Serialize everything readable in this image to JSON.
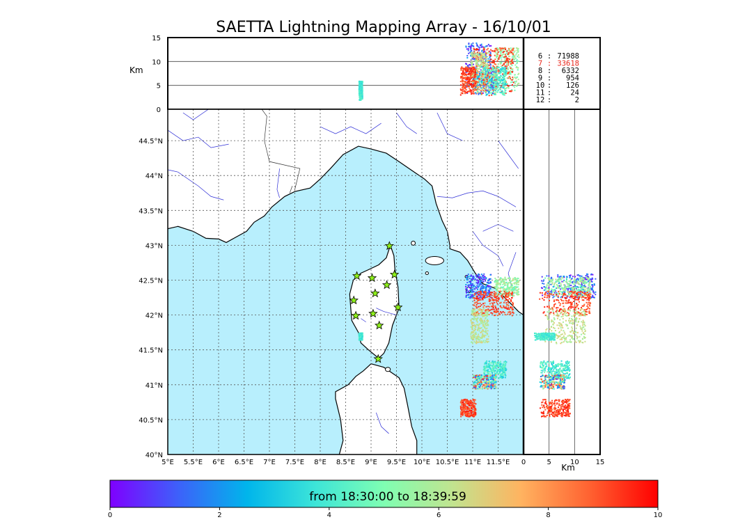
{
  "title": "SAETTA Lightning Mapping Array - 16/10/01",
  "altitude_axis": {
    "label": "Km",
    "ticks": [
      "0",
      "5",
      "10",
      "15"
    ],
    "range": [
      0,
      15
    ],
    "gridlines": [
      5,
      10
    ]
  },
  "map": {
    "lon_range": [
      5.0,
      12.0
    ],
    "lat_range": [
      40.0,
      44.95
    ],
    "lon_ticks": [
      "5°E",
      "5.5°E",
      "6°E",
      "6.5°E",
      "7°E",
      "7.5°E",
      "8°E",
      "8.5°E",
      "9°E",
      "9.5°E",
      "10°E",
      "10.5°E",
      "11°E",
      "11.5°E"
    ],
    "lat_ticks": [
      "40°N",
      "40.5°N",
      "41°N",
      "41.5°N",
      "42°N",
      "42.5°N",
      "43°N",
      "43.5°N",
      "44°N",
      "44.5°N"
    ],
    "sea_color": "#b8effd",
    "land_color": "#ffffff",
    "river_color": "#2d2dd6",
    "sensor_stations": [
      [
        9.36,
        42.99
      ],
      [
        8.72,
        42.56
      ],
      [
        9.02,
        42.53
      ],
      [
        9.46,
        42.58
      ],
      [
        9.31,
        42.43
      ],
      [
        9.08,
        42.31
      ],
      [
        8.66,
        42.21
      ],
      [
        9.53,
        42.11
      ],
      [
        8.7,
        41.99
      ],
      [
        9.04,
        42.02
      ],
      [
        9.16,
        41.85
      ],
      [
        9.14,
        41.37
      ]
    ],
    "sensor_icon": "star-icon"
  },
  "side_panel": {
    "xlabel": "Km",
    "ticks": [
      "0",
      "5",
      "10",
      "15"
    ],
    "range": [
      0,
      15
    ],
    "gridlines": [
      5,
      10
    ]
  },
  "station_counts": [
    {
      "stations": "6",
      "sep": ":",
      "count": "71988",
      "color": "#000000"
    },
    {
      "stations": "7",
      "sep": ":",
      "count": "33618",
      "color": "#e8261a"
    },
    {
      "stations": "8",
      "sep": ":",
      "count": "6332",
      "color": "#000000"
    },
    {
      "stations": "9",
      "sep": ":",
      "count": "954",
      "color": "#000000"
    },
    {
      "stations": "10",
      "sep": ":",
      "count": "126",
      "color": "#000000"
    },
    {
      "stations": "11",
      "sep": ":",
      "count": "24",
      "color": "#000000"
    },
    {
      "stations": "12",
      "sep": ":",
      "count": "2",
      "color": "#000000"
    }
  ],
  "colorbar": {
    "label": "from 18:30:00 to 18:39:59",
    "ticks": [
      "0",
      "2",
      "4",
      "6",
      "8",
      "10"
    ],
    "range": [
      0,
      10
    ],
    "colormap": [
      "#7f00ff",
      "#3d61fa",
      "#00b5eb",
      "#3de5d8",
      "#7ffeb2",
      "#c1e48f",
      "#ffb360",
      "#ff6231",
      "#ff0000"
    ]
  },
  "chart_data": {
    "type": "scatter",
    "clusters": [
      {
        "lon": [
          10.85,
          11.35
        ],
        "lat": [
          42.25,
          42.6
        ],
        "alt": [
          3,
          14
        ],
        "time": [
          0.0,
          2.5
        ]
      },
      {
        "lon": [
          11.4,
          11.9
        ],
        "lat": [
          42.28,
          42.55
        ],
        "alt": [
          4,
          13
        ],
        "time": [
          4.5,
          6.5
        ]
      },
      {
        "lon": [
          11.0,
          11.8
        ],
        "lat": [
          42.0,
          42.35
        ],
        "alt": [
          3,
          13
        ],
        "time": [
          8.5,
          9.8
        ]
      },
      {
        "lon": [
          10.95,
          11.3
        ],
        "lat": [
          41.6,
          42.1
        ],
        "alt": [
          4,
          12
        ],
        "time": [
          5.5,
          7.0
        ]
      },
      {
        "lon": [
          11.2,
          11.65
        ],
        "lat": [
          41.1,
          41.35
        ],
        "alt": [
          3,
          9
        ],
        "time": [
          3.0,
          5.0
        ]
      },
      {
        "lon": [
          11.0,
          11.45
        ],
        "lat": [
          40.95,
          41.15
        ],
        "alt": [
          3,
          8
        ],
        "time": [
          0.5,
          9.5
        ]
      },
      {
        "lon": [
          10.75,
          11.05
        ],
        "lat": [
          40.55,
          40.8
        ],
        "alt": [
          3,
          9
        ],
        "time": [
          8.5,
          9.9
        ]
      },
      {
        "lon": [
          8.75,
          8.82
        ],
        "lat": [
          41.65,
          41.75
        ],
        "alt": [
          2,
          6
        ],
        "time": [
          3.5,
          4.5
        ]
      }
    ]
  }
}
